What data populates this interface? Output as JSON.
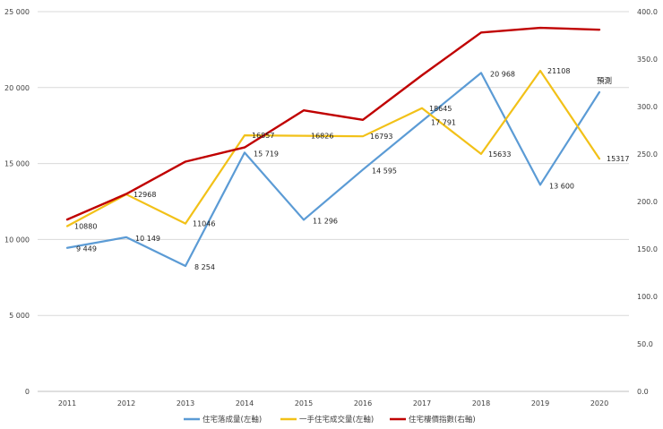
{
  "chart_data": {
    "type": "line",
    "categories": [
      "2011",
      "2012",
      "2013",
      "2014",
      "2015",
      "2016",
      "2017",
      "2018",
      "2019",
      "2020"
    ],
    "left_axis": {
      "min": 0,
      "max": 25000,
      "ticks": [
        "0",
        "5 000",
        "10 000",
        "15 000",
        "20 000",
        "25 000"
      ]
    },
    "right_axis": {
      "min": 0,
      "max": 400,
      "ticks": [
        "0.0",
        "50.0",
        "100.0",
        "150.0",
        "200.0",
        "250.0",
        "300.0",
        "350.0",
        "400.0"
      ]
    },
    "grid": "horizontal",
    "legend_position": "bottom",
    "annotation": "預測",
    "series": [
      {
        "name": "住宅落成量(左軸)",
        "axis": "left",
        "color": "#5b9bd5",
        "values": [
          9449,
          10149,
          8254,
          15719,
          11296,
          14595,
          17791,
          20968,
          13600,
          19700
        ],
        "labels": [
          "9 449",
          "10 149",
          "8 254",
          "15 719",
          "11 296",
          "14 595",
          "17 791",
          "20 968",
          "13 600",
          ""
        ]
      },
      {
        "name": "一手住宅成交量(左軸)",
        "axis": "left",
        "color": "#f2c118",
        "values": [
          10880,
          12968,
          11046,
          16857,
          16826,
          16793,
          18645,
          15633,
          21108,
          15317
        ],
        "labels": [
          "10880",
          "12968",
          "11046",
          "16857",
          "16826",
          "16793",
          "18645",
          "15633",
          "21108",
          "15317"
        ]
      },
      {
        "name": "住宅樓價指數(右軸)",
        "axis": "right",
        "color": "#c00000",
        "values": [
          181,
          208,
          242,
          257,
          296,
          286,
          333,
          378,
          383,
          381
        ],
        "labels": []
      }
    ]
  }
}
